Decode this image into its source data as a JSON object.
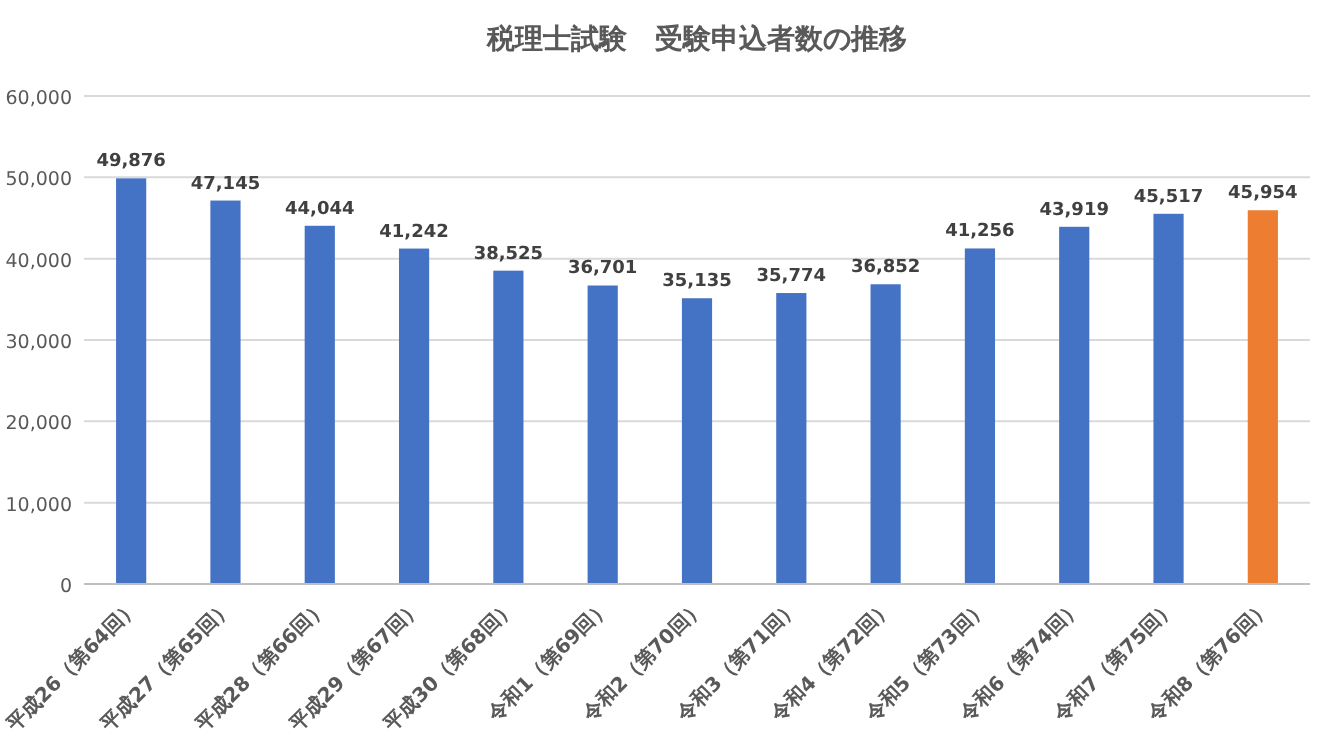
{
  "chart_data": {
    "type": "bar",
    "title": "税理士試験　受験申込者数の推移",
    "categories": [
      "平成26（第64回）",
      "平成27（第65回）",
      "平成28（第66回）",
      "平成29（第67回）",
      "平成30（第68回）",
      "令和1（第69回）",
      "令和2（第70回）",
      "令和3（第71回）",
      "令和4（第72回）",
      "令和5（第73回）",
      "令和6（第74回）",
      "令和7（第75回）",
      "令和8（第76回）"
    ],
    "values": [
      49876,
      47145,
      44044,
      41242,
      38525,
      36701,
      35135,
      35774,
      36852,
      41256,
      43919,
      45517,
      45954
    ],
    "value_labels": [
      "49,876",
      "47,145",
      "44,044",
      "41,242",
      "38,525",
      "36,701",
      "35,135",
      "35,774",
      "36,852",
      "41,256",
      "43,919",
      "45,517",
      "45,954"
    ],
    "colors": [
      "#4472c4",
      "#4472c4",
      "#4472c4",
      "#4472c4",
      "#4472c4",
      "#4472c4",
      "#4472c4",
      "#4472c4",
      "#4472c4",
      "#4472c4",
      "#4472c4",
      "#4472c4",
      "#ed7d31"
    ],
    "ylim": [
      0,
      60000
    ],
    "yticks": [
      0,
      {
        "value": 10000,
        "label": "10,000"
      },
      {
        "value": 20000,
        "label": "20,000"
      },
      {
        "value": 30000,
        "label": "30,000"
      },
      {
        "value": 40000,
        "label": "40,000"
      },
      {
        "value": 50000,
        "label": "50,000"
      },
      {
        "value": 60000,
        "label": "60,000"
      }
    ],
    "grid": "y"
  }
}
